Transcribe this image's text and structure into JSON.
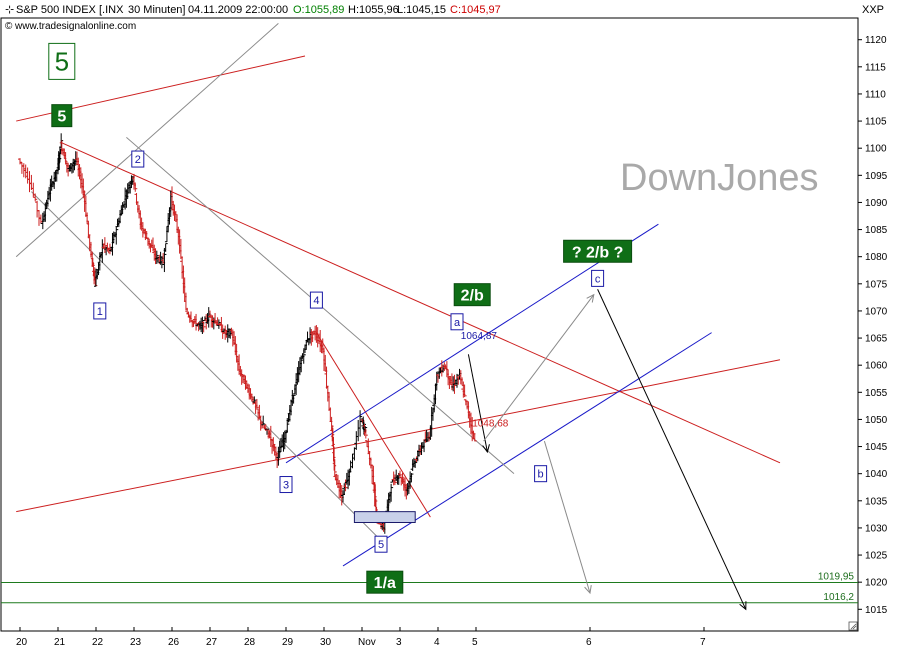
{
  "header": {
    "symbol": "S&P 500 INDEX [.INX",
    "interval": "30 Minuten]",
    "datetime": "04.11.2009 22:00:00",
    "open": "O:1055,89",
    "high": "H:1055,96",
    "low": "L:1045,15",
    "close": "C:1045,97",
    "source": "www.tradesignalonline.com",
    "panel_code": "XXP"
  },
  "watermark": "DownJones",
  "chart_data": {
    "type": "candlestick",
    "ylim": [
      1011,
      1124
    ],
    "y_ticks": [
      1015,
      1020,
      1025,
      1030,
      1035,
      1040,
      1045,
      1050,
      1055,
      1060,
      1065,
      1070,
      1075,
      1080,
      1085,
      1090,
      1095,
      1100,
      1105,
      1110,
      1115,
      1120
    ],
    "x_ticks": [
      {
        "label": "20",
        "x": 0
      },
      {
        "label": "21",
        "x": 1
      },
      {
        "label": "22",
        "x": 2
      },
      {
        "label": "23",
        "x": 3
      },
      {
        "label": "26",
        "x": 4
      },
      {
        "label": "27",
        "x": 5
      },
      {
        "label": "28",
        "x": 6
      },
      {
        "label": "29",
        "x": 7
      },
      {
        "label": "30",
        "x": 8
      },
      {
        "label": "Nov",
        "x": 9
      },
      {
        "label": "3",
        "x": 10
      },
      {
        "label": "4",
        "x": 11
      },
      {
        "label": "5",
        "x": 12
      },
      {
        "label": "6",
        "x": 15
      },
      {
        "label": "7",
        "x": 18
      }
    ],
    "price_path": [
      [
        0,
        1098
      ],
      [
        0.3,
        1094
      ],
      [
        0.6,
        1086
      ],
      [
        0.8,
        1092
      ],
      [
        1,
        1096
      ],
      [
        1.1,
        1101
      ],
      [
        1.3,
        1096
      ],
      [
        1.5,
        1098
      ],
      [
        1.7,
        1092
      ],
      [
        1.9,
        1080
      ],
      [
        2,
        1075
      ],
      [
        2.2,
        1082
      ],
      [
        2.4,
        1081
      ],
      [
        2.6,
        1086
      ],
      [
        2.8,
        1091
      ],
      [
        3,
        1095
      ],
      [
        3.2,
        1086
      ],
      [
        3.4,
        1083
      ],
      [
        3.6,
        1080
      ],
      [
        3.8,
        1079
      ],
      [
        4,
        1091
      ],
      [
        4.2,
        1084
      ],
      [
        4.4,
        1070
      ],
      [
        4.6,
        1068
      ],
      [
        4.8,
        1067
      ],
      [
        5,
        1069
      ],
      [
        5.2,
        1068
      ],
      [
        5.4,
        1066
      ],
      [
        5.6,
        1066
      ],
      [
        5.8,
        1059
      ],
      [
        6,
        1056
      ],
      [
        6.2,
        1053
      ],
      [
        6.4,
        1049
      ],
      [
        6.6,
        1047
      ],
      [
        6.8,
        1043
      ],
      [
        7,
        1047
      ],
      [
        7.2,
        1054
      ],
      [
        7.4,
        1060
      ],
      [
        7.6,
        1065
      ],
      [
        7.8,
        1066
      ],
      [
        8,
        1063
      ],
      [
        8.2,
        1050
      ],
      [
        8.3,
        1040
      ],
      [
        8.5,
        1036
      ],
      [
        8.7,
        1040
      ],
      [
        9,
        1050
      ],
      [
        9.1,
        1048
      ],
      [
        9.3,
        1040
      ],
      [
        9.4,
        1032
      ],
      [
        9.6,
        1030
      ],
      [
        9.8,
        1038
      ],
      [
        10,
        1040
      ],
      [
        10.2,
        1037
      ],
      [
        10.4,
        1042
      ],
      [
        10.6,
        1045
      ],
      [
        10.8,
        1047
      ],
      [
        11,
        1058
      ],
      [
        11.2,
        1060
      ],
      [
        11.4,
        1056
      ],
      [
        11.6,
        1058
      ],
      [
        11.8,
        1052
      ],
      [
        12,
        1046
      ]
    ],
    "levels": [
      {
        "label": "1019,95",
        "value": 1019.95
      },
      {
        "label": "1016,2",
        "value": 1016.2
      }
    ],
    "annotations": [
      {
        "text": "1064,87",
        "x": 11.6,
        "y": 1064.87
      },
      {
        "text": "1048,68",
        "x": 11.9,
        "y": 1048.68
      }
    ],
    "wave_labels": [
      {
        "text": "5",
        "style": "big-outline",
        "x": 1.1,
        "y": 1116
      },
      {
        "text": "5",
        "style": "green",
        "x": 1.1,
        "y": 1106
      },
      {
        "text": "1",
        "style": "blue-box",
        "x": 2.1,
        "y": 1070
      },
      {
        "text": "2",
        "style": "blue-box",
        "x": 3.1,
        "y": 1098
      },
      {
        "text": "4",
        "style": "blue-box",
        "x": 7.8,
        "y": 1072
      },
      {
        "text": "3",
        "style": "blue-box",
        "x": 7.0,
        "y": 1038
      },
      {
        "text": "5",
        "style": "blue-box",
        "x": 9.5,
        "y": 1027
      },
      {
        "text": "1/a",
        "style": "green",
        "x": 9.6,
        "y": 1020
      },
      {
        "text": "2/b",
        "style": "green",
        "x": 11.9,
        "y": 1073
      },
      {
        "text": "a",
        "style": "blue-box",
        "x": 11.5,
        "y": 1068
      },
      {
        "text": "b",
        "style": "blue-box",
        "x": 13.7,
        "y": 1040
      },
      {
        "text": "c",
        "style": "blue-box",
        "x": 15.2,
        "y": 1076
      },
      {
        "text": "? 2/b ?",
        "style": "green",
        "x": 15.2,
        "y": 1081
      }
    ],
    "lines": [
      {
        "color": "red",
        "from": [
          1.1,
          1101
        ],
        "to": [
          20,
          1042
        ]
      },
      {
        "color": "red",
        "from": [
          -0.1,
          1033
        ],
        "to": [
          20,
          1061
        ]
      },
      {
        "color": "red",
        "from": [
          -0.1,
          1105
        ],
        "to": [
          7.5,
          1117
        ]
      },
      {
        "color": "red",
        "from": [
          7.8,
          1066
        ],
        "to": [
          10.8,
          1032
        ]
      },
      {
        "color": "blue",
        "from": [
          7.0,
          1042
        ],
        "to": [
          16.8,
          1086
        ]
      },
      {
        "color": "blue",
        "from": [
          8.5,
          1023
        ],
        "to": [
          18.2,
          1066
        ]
      },
      {
        "color": "gray",
        "from": [
          -0.1,
          1080
        ],
        "to": [
          6.8,
          1123
        ]
      },
      {
        "color": "gray",
        "from": [
          2.8,
          1102
        ],
        "to": [
          13,
          1040
        ]
      },
      {
        "color": "gray",
        "from": [
          0.3,
          1092
        ],
        "to": [
          9.6,
          1027
        ]
      }
    ],
    "arrows": [
      {
        "color": "black",
        "from": [
          11.8,
          1062
        ],
        "to": [
          12.3,
          1044
        ]
      },
      {
        "color": "gray",
        "from": [
          12.2,
          1046
        ],
        "to": [
          15.1,
          1073
        ]
      },
      {
        "color": "gray",
        "from": [
          13.8,
          1046
        ],
        "to": [
          15.0,
          1018
        ]
      },
      {
        "color": "black",
        "from": [
          15.2,
          1074
        ],
        "to": [
          19.1,
          1015
        ]
      }
    ],
    "boxes": [
      {
        "from": [
          8.8,
          1033
        ],
        "to": [
          10.4,
          1031
        ]
      }
    ]
  }
}
